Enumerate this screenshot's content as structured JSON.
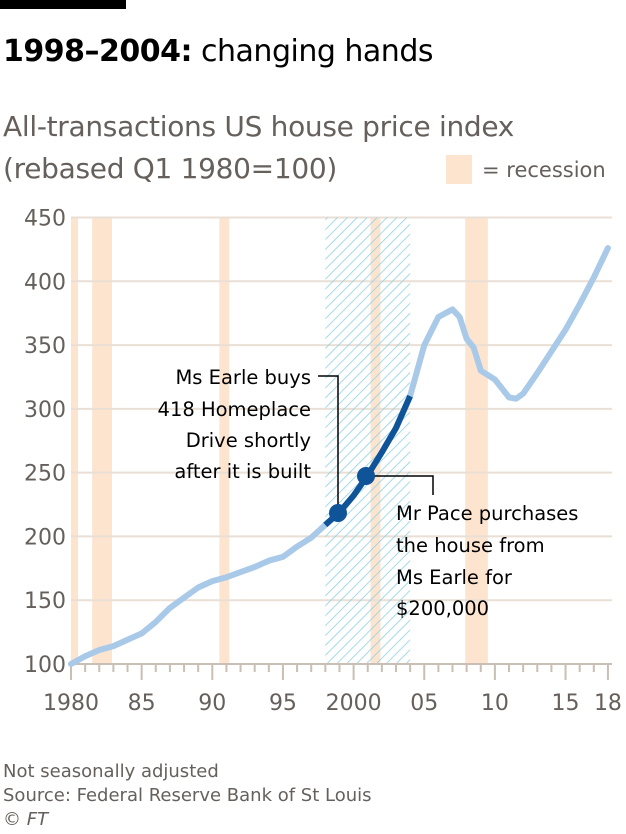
{
  "header": {
    "title_bold": "1998–2004:",
    "title_rest": " changing hands",
    "subtitle_line1": "All-transactions US house price index",
    "subtitle_line2": "(rebased Q1 1980=100)",
    "legend_label": "= recession"
  },
  "colors": {
    "line": "#a9c9e8",
    "highlight": "#0f5499",
    "recession": "#fde4cf",
    "hatch": "#8fd1e3",
    "gridline": "#e9dfd5",
    "axis_text": "#66605c"
  },
  "annotations": {
    "earle": [
      "Ms Earle buys",
      "418 Homeplace",
      "Drive shortly",
      "after it is built"
    ],
    "pace": [
      "Mr Pace purchases",
      "the house from",
      "Ms Earle for",
      "$200,000"
    ]
  },
  "footer": {
    "note": "Not seasonally adjusted",
    "source": "Source: Federal Reserve Bank of St Louis",
    "copyright_symbol": "©",
    "copyright_org": "FT"
  },
  "chart_data": {
    "type": "line",
    "title": "1998–2004: changing hands",
    "subtitle": "All-transactions US house price index (rebased Q1 1980=100)",
    "xlabel": "",
    "ylabel": "",
    "ylim": [
      100,
      450
    ],
    "xlim": [
      1980,
      2018
    ],
    "yticks": [
      100,
      150,
      200,
      250,
      300,
      350,
      400,
      450
    ],
    "xtick_labels": [
      "1980",
      "85",
      "90",
      "95",
      "2000",
      "05",
      "10",
      "15",
      "18"
    ],
    "grid": true,
    "legend": [
      {
        "label": "= recession",
        "position": "top-right"
      }
    ],
    "series": [
      {
        "name": "All-transactions US house price index",
        "x": [
          1980,
          1981,
          1982,
          1983,
          1984,
          1985,
          1986,
          1987,
          1988,
          1989,
          1990,
          1991,
          1992,
          1993,
          1994,
          1995,
          1996,
          1997,
          1998,
          1999,
          2000,
          2001,
          2002,
          2003,
          2004,
          2005,
          2006,
          2007,
          2007.5,
          2008,
          2008.5,
          2009,
          2010,
          2011,
          2011.5,
          2012,
          2013,
          2014,
          2015,
          2016,
          2017,
          2018
        ],
        "values": [
          100,
          106,
          111,
          114,
          119,
          124,
          133,
          144,
          152,
          160,
          165,
          168,
          172,
          176,
          181,
          184,
          192,
          199,
          209,
          219,
          232,
          248,
          266,
          285,
          310,
          350,
          372,
          378,
          372,
          355,
          348,
          330,
          323,
          309,
          308,
          312,
          328,
          345,
          362,
          382,
          403,
          426
        ]
      }
    ],
    "highlight_period": {
      "start": 1998,
      "end": 2004,
      "style": "hatched"
    },
    "recessions": [
      [
        1980.0,
        1980.5
      ],
      [
        1981.5,
        1982.9
      ],
      [
        1990.5,
        1991.2
      ],
      [
        2001.2,
        2001.9
      ],
      [
        2007.9,
        2009.5
      ]
    ],
    "points": [
      {
        "year": 1999,
        "value": 219,
        "label": "Ms Earle buys 418 Homeplace Drive shortly after it is built"
      },
      {
        "year": 2001,
        "value": 248,
        "label": "Mr Pace purchases the house from Ms Earle for $200,000"
      }
    ]
  }
}
